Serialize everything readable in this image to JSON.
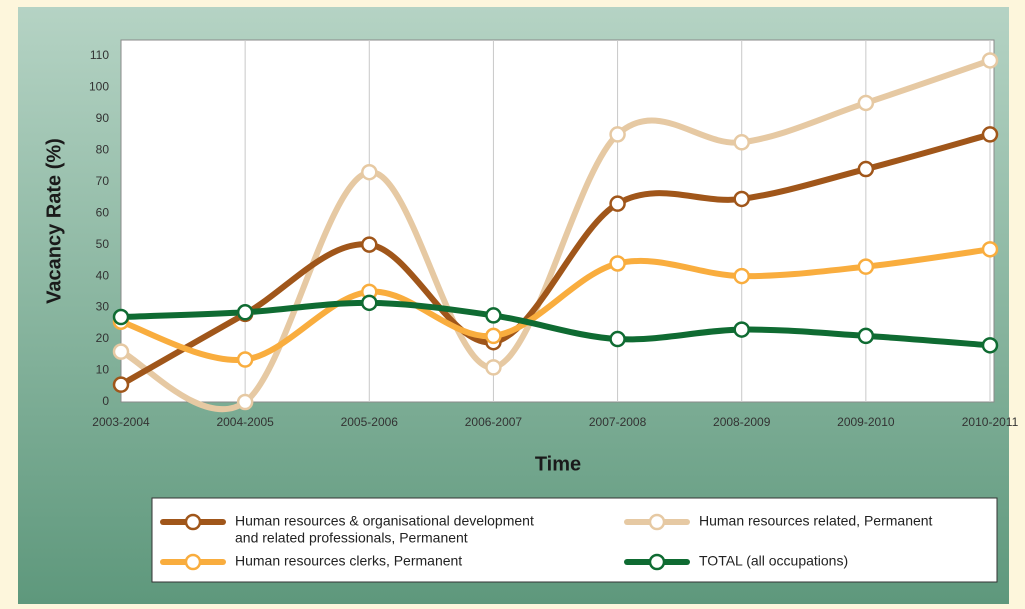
{
  "chart_data": {
    "type": "line",
    "title": "",
    "xlabel": "Time",
    "ylabel": "Vacancy Rate (%)",
    "ylim": [
      0,
      115
    ],
    "yticks": [
      0,
      10,
      20,
      30,
      40,
      50,
      60,
      70,
      80,
      90,
      100,
      110
    ],
    "grid": "vertical",
    "legend_position": "bottom",
    "categories": [
      "2003-2004",
      "2004-2005",
      "2005-2006",
      "2006-2007",
      "2007-2008",
      "2008-2009",
      "2009-2010",
      "2010-2011"
    ],
    "series": [
      {
        "name": "Human resources & organisational development and related professionals, Permanent",
        "legend_lines": [
          "Human resources & organisational development",
          "and related professionals, Permanent"
        ],
        "color": "#a0561a",
        "values": [
          5.5,
          28,
          50,
          19,
          63,
          64.5,
          74,
          85
        ]
      },
      {
        "name": "Human resources related, Permanent",
        "legend_lines": [
          "Human resources related, Permanent"
        ],
        "color": "#e6c9a3",
        "values": [
          16,
          0,
          73,
          11,
          85,
          82.5,
          95,
          108.5
        ]
      },
      {
        "name": "Human resources clerks, Permanent",
        "legend_lines": [
          "Human resources clerks, Permanent"
        ],
        "color": "#f9ad3e",
        "values": [
          25.5,
          13.5,
          35,
          21,
          44,
          40,
          43,
          48.5
        ]
      },
      {
        "name": "TOTAL (all occupations)",
        "legend_lines": [
          "TOTAL (all occupations)"
        ],
        "color": "#0f6b32",
        "values": [
          27,
          28.5,
          31.5,
          27.5,
          20,
          23,
          21,
          18
        ]
      }
    ]
  }
}
